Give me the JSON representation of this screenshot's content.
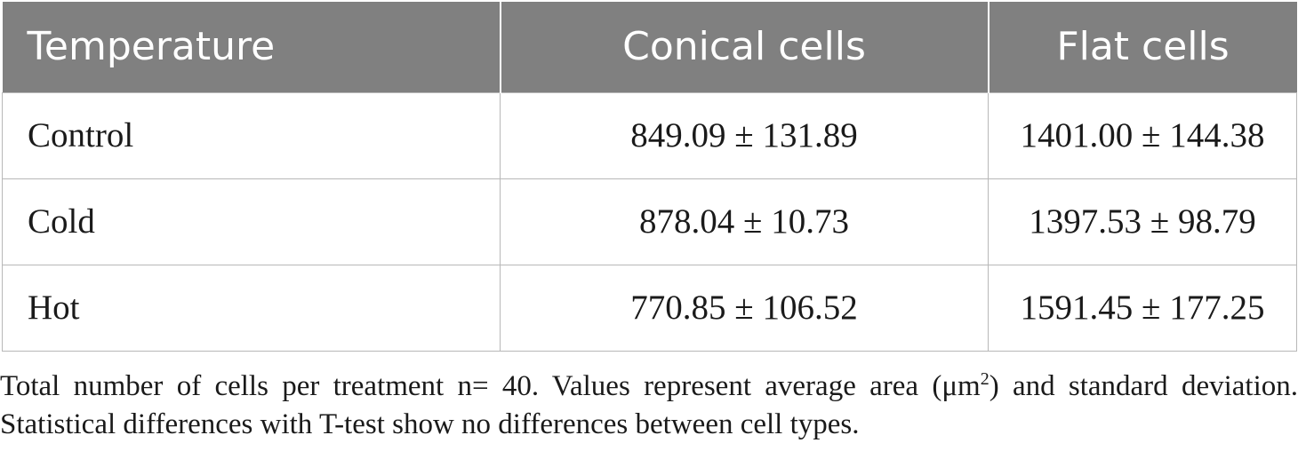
{
  "table": {
    "headers": [
      "Temperature",
      "Conical cells",
      "Flat cells"
    ],
    "rows": [
      [
        "Control",
        "849.09 ± 131.89",
        "1401.00 ± 144.38"
      ],
      [
        "Cold",
        "878.04 ± 10.73",
        "1397.53 ± 98.79"
      ],
      [
        "Hot",
        "770.85 ± 106.52",
        "1591.45 ± 177.25"
      ]
    ]
  },
  "footnote": {
    "part1": "Total number of cells per treatment n= 40. Values represent average area (μm",
    "sup": "2",
    "part2": ") and standard deviation. Statistical differences with T-test show no differences between cell types."
  },
  "colors": {
    "header_bg": "#808080",
    "header_text": "#ffffff",
    "grid": "#b8b8b8"
  }
}
